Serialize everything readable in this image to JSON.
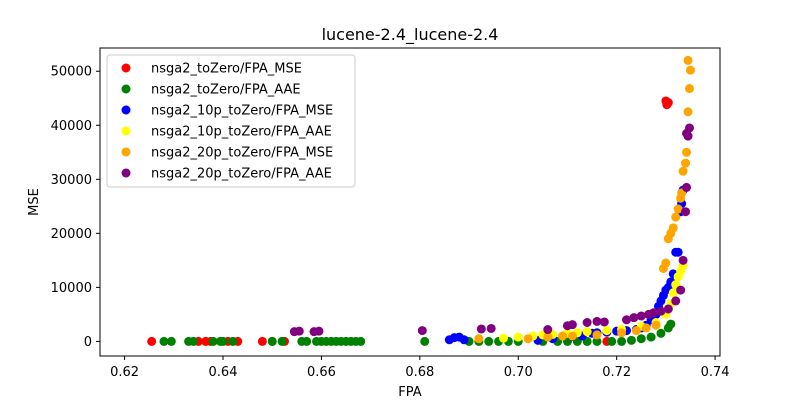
{
  "chart_data": {
    "type": "scatter",
    "title": "lucene-2.4_lucene-2.4",
    "xlabel": "FPA",
    "ylabel": "MSE",
    "xlim": [
      0.615,
      0.741
    ],
    "ylim": [
      -2700,
      54300
    ],
    "x_ticks": [
      "0.62",
      "0.64",
      "0.66",
      "0.68",
      "0.70",
      "0.72",
      "0.74"
    ],
    "y_ticks": [
      "0",
      "10000",
      "20000",
      "30000",
      "40000",
      "50000"
    ],
    "grid": false,
    "legend_position": "top-left",
    "series": [
      {
        "name": "nsga2_toZero/FPA_MSE",
        "color": "#ff0000",
        "points": [
          [
            0.6255,
            0
          ],
          [
            0.635,
            0
          ],
          [
            0.6365,
            0
          ],
          [
            0.6375,
            0
          ],
          [
            0.641,
            0
          ],
          [
            0.643,
            0
          ],
          [
            0.648,
            0
          ],
          [
            0.65,
            0
          ],
          [
            0.6525,
            0
          ],
          [
            0.718,
            0
          ],
          [
            0.73,
            44500
          ],
          [
            0.7302,
            43800
          ],
          [
            0.7305,
            44200
          ]
        ]
      },
      {
        "name": "nsga2_toZero/FPA_AAE",
        "color": "#008000",
        "points": [
          [
            0.628,
            0
          ],
          [
            0.6295,
            0
          ],
          [
            0.633,
            0
          ],
          [
            0.634,
            0
          ],
          [
            0.638,
            0
          ],
          [
            0.6395,
            0
          ],
          [
            0.64,
            0
          ],
          [
            0.642,
            0
          ],
          [
            0.65,
            0
          ],
          [
            0.652,
            0
          ],
          [
            0.656,
            0
          ],
          [
            0.657,
            0
          ],
          [
            0.659,
            0
          ],
          [
            0.66,
            0
          ],
          [
            0.661,
            0
          ],
          [
            0.662,
            0
          ],
          [
            0.663,
            0
          ],
          [
            0.664,
            0
          ],
          [
            0.665,
            0
          ],
          [
            0.666,
            0
          ],
          [
            0.667,
            0
          ],
          [
            0.668,
            0
          ],
          [
            0.681,
            0
          ],
          [
            0.69,
            0
          ],
          [
            0.692,
            0
          ],
          [
            0.694,
            0
          ],
          [
            0.696,
            0
          ],
          [
            0.698,
            0
          ],
          [
            0.7,
            0
          ],
          [
            0.705,
            0
          ],
          [
            0.708,
            0
          ],
          [
            0.71,
            0
          ],
          [
            0.712,
            0
          ],
          [
            0.714,
            0
          ],
          [
            0.716,
            0
          ],
          [
            0.719,
            0
          ],
          [
            0.721,
            0
          ],
          [
            0.723,
            200
          ],
          [
            0.725,
            500
          ],
          [
            0.727,
            800
          ],
          [
            0.729,
            1500
          ],
          [
            0.7305,
            2500
          ],
          [
            0.731,
            3200
          ]
        ]
      },
      {
        "name": "nsga2_10p_toZero/FPA_MSE",
        "color": "#0000ff",
        "points": [
          [
            0.686,
            300
          ],
          [
            0.687,
            700
          ],
          [
            0.688,
            800
          ],
          [
            0.689,
            300
          ],
          [
            0.704,
            200
          ],
          [
            0.707,
            500
          ],
          [
            0.711,
            900
          ],
          [
            0.713,
            1000
          ],
          [
            0.715,
            1500
          ],
          [
            0.716,
            1600
          ],
          [
            0.718,
            1700
          ],
          [
            0.72,
            1900
          ],
          [
            0.722,
            2000
          ],
          [
            0.724,
            2200
          ],
          [
            0.725,
            2500
          ],
          [
            0.726,
            3000
          ],
          [
            0.727,
            4000
          ],
          [
            0.728,
            5000
          ],
          [
            0.7285,
            6500
          ],
          [
            0.729,
            7500
          ],
          [
            0.7295,
            8500
          ],
          [
            0.73,
            9500
          ],
          [
            0.7305,
            10000
          ],
          [
            0.731,
            11000
          ],
          [
            0.7315,
            12500
          ],
          [
            0.732,
            16500
          ],
          [
            0.7325,
            16500
          ],
          [
            0.733,
            24000
          ],
          [
            0.7332,
            25500
          ],
          [
            0.7335,
            28000
          ]
        ]
      },
      {
        "name": "nsga2_10p_toZero/FPA_AAE",
        "color": "#ffff00",
        "points": [
          [
            0.697,
            600
          ],
          [
            0.7,
            800
          ],
          [
            0.703,
            1000
          ],
          [
            0.705,
            1200
          ],
          [
            0.707,
            1300
          ],
          [
            0.71,
            1500
          ],
          [
            0.712,
            1600
          ],
          [
            0.714,
            1800
          ],
          [
            0.718,
            2000
          ],
          [
            0.721,
            2200
          ],
          [
            0.725,
            2800
          ],
          [
            0.728,
            3500
          ],
          [
            0.73,
            5000
          ],
          [
            0.731,
            7000
          ],
          [
            0.7315,
            9000
          ],
          [
            0.732,
            10500
          ],
          [
            0.7325,
            12000
          ],
          [
            0.733,
            13000
          ],
          [
            0.7335,
            14000
          ]
        ]
      },
      {
        "name": "nsga2_20p_toZero/FPA_MSE",
        "color": "#ffa500",
        "points": [
          [
            0.692,
            500
          ],
          [
            0.702,
            500
          ],
          [
            0.706,
            800
          ],
          [
            0.709,
            1000
          ],
          [
            0.711,
            1000
          ],
          [
            0.716,
            1200
          ],
          [
            0.721,
            1600
          ],
          [
            0.724,
            2000
          ],
          [
            0.726,
            2500
          ],
          [
            0.728,
            3000
          ],
          [
            0.7295,
            13500
          ],
          [
            0.73,
            14500
          ],
          [
            0.7305,
            19000
          ],
          [
            0.731,
            20000
          ],
          [
            0.7315,
            21000
          ],
          [
            0.732,
            23000
          ],
          [
            0.7325,
            24500
          ],
          [
            0.733,
            26500
          ],
          [
            0.7332,
            27500
          ],
          [
            0.7335,
            31500
          ],
          [
            0.734,
            33000
          ],
          [
            0.7342,
            35000
          ],
          [
            0.7345,
            42500
          ],
          [
            0.7348,
            46800
          ],
          [
            0.735,
            50200
          ],
          [
            0.7345,
            52000
          ]
        ]
      },
      {
        "name": "nsga2_20p_toZero/FPA_AAE",
        "color": "#800080",
        "points": [
          [
            0.6545,
            1800
          ],
          [
            0.6555,
            1900
          ],
          [
            0.6585,
            1800
          ],
          [
            0.6595,
            1900
          ],
          [
            0.6805,
            2000
          ],
          [
            0.6925,
            2300
          ],
          [
            0.6945,
            2400
          ],
          [
            0.706,
            2200
          ],
          [
            0.71,
            2900
          ],
          [
            0.711,
            3100
          ],
          [
            0.714,
            3500
          ],
          [
            0.716,
            3700
          ],
          [
            0.7175,
            3600
          ],
          [
            0.722,
            4000
          ],
          [
            0.7235,
            4400
          ],
          [
            0.725,
            4700
          ],
          [
            0.7265,
            5000
          ],
          [
            0.7275,
            5300
          ],
          [
            0.729,
            5600
          ],
          [
            0.7305,
            6000
          ],
          [
            0.732,
            7500
          ],
          [
            0.733,
            9500
          ],
          [
            0.7335,
            15000
          ],
          [
            0.734,
            24000
          ],
          [
            0.7342,
            28500
          ],
          [
            0.7345,
            38000
          ],
          [
            0.7348,
            39500
          ],
          [
            0.7342,
            38500
          ]
        ]
      }
    ]
  }
}
